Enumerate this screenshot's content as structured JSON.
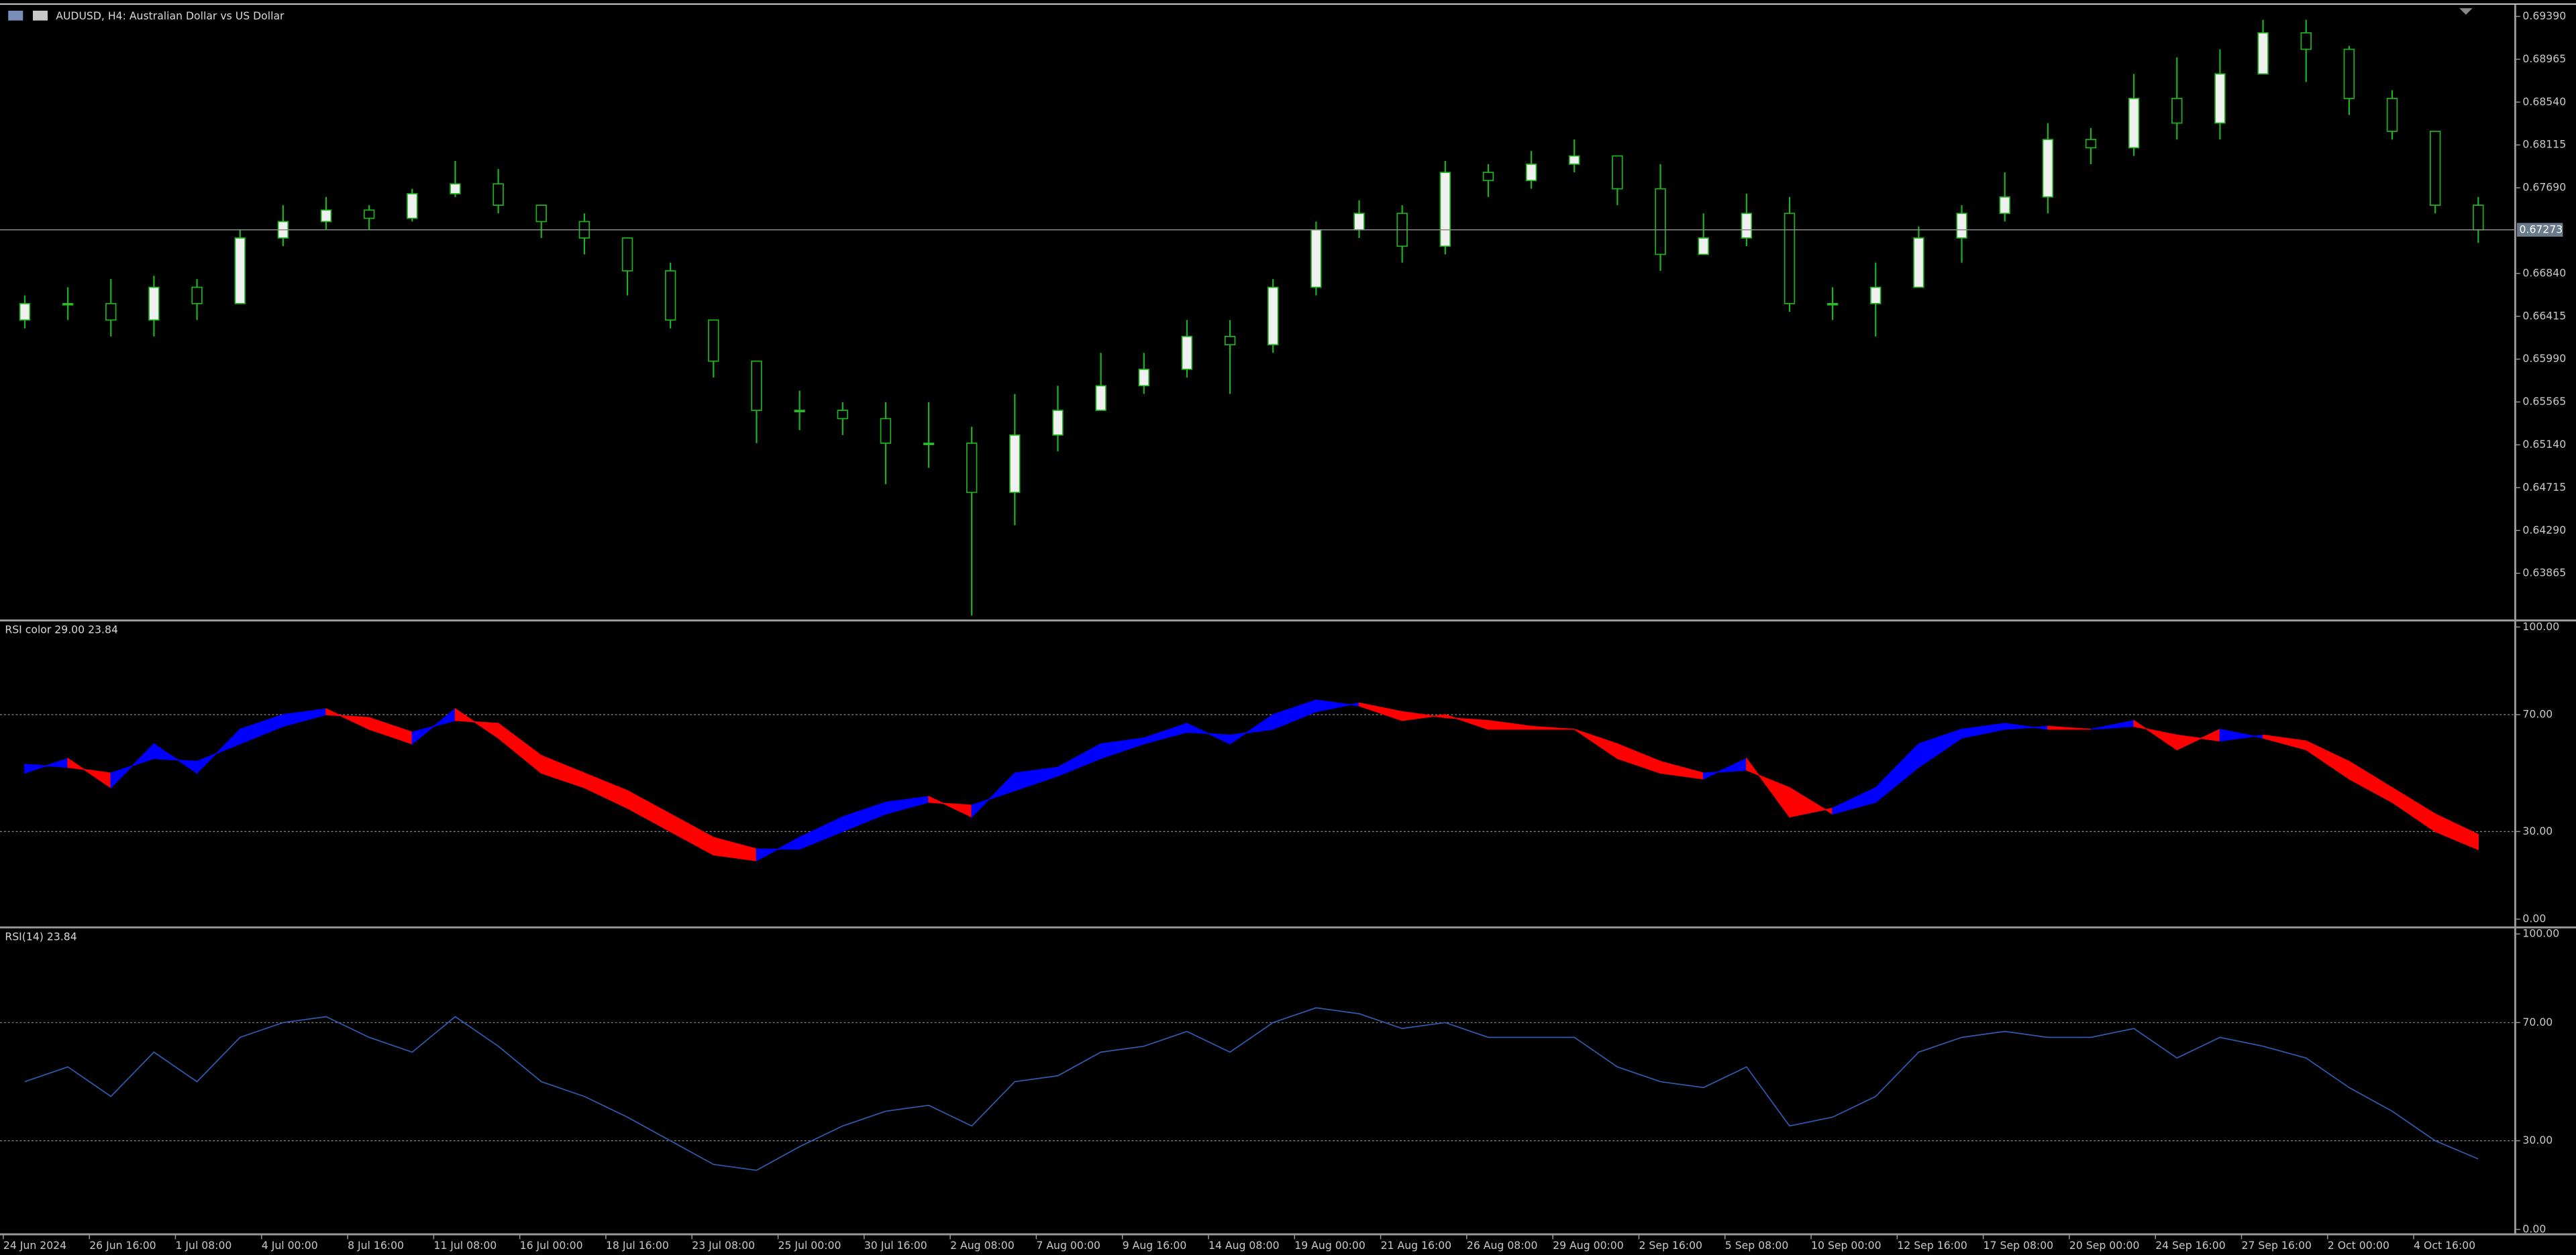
{
  "chart_data": [
    {
      "type": "candlestick",
      "title": "AUDUSD, H4:  Australian Dollar vs US Dollar",
      "categories": [
        "24 Jun 2024",
        null,
        "26 Jun 16:00",
        null,
        "1 Jul 08:00",
        null,
        "4 Jul 00:00",
        null,
        "8 Jul 16:00",
        null,
        "11 Jul 08:00",
        null,
        "16 Jul 00:00",
        null,
        "18 Jul 16:00",
        null,
        "23 Jul 08:00",
        null,
        "25 Jul 00:00",
        null,
        "30 Jul 16:00",
        null,
        "2 Aug 08:00",
        null,
        "7 Aug 00:00",
        null,
        "9 Aug 16:00",
        null,
        "14 Aug 08:00",
        null,
        "19 Aug 00:00",
        null,
        "21 Aug 16:00",
        null,
        "26 Aug 08:00",
        null,
        "29 Aug 00:00",
        null,
        "2 Sep 16:00",
        null,
        "5 Sep 08:00",
        null,
        "10 Sep 00:00",
        null,
        "12 Sep 16:00",
        null,
        "17 Sep 08:00",
        null,
        "20 Sep 00:00",
        null,
        "24 Sep 16:00",
        null,
        "27 Sep 16:00",
        null,
        "2 Oct 00:00",
        null,
        "4 Oct 16:00",
        null
      ],
      "open": [
        0.66378,
        0.66541,
        0.66541,
        0.66378,
        0.66703,
        0.66541,
        0.67192,
        0.67355,
        0.67469,
        0.67387,
        0.67631,
        0.67729,
        0.67517,
        0.67355,
        0.67192,
        0.66866,
        0.66378,
        0.6597,
        0.65482,
        0.65482,
        0.654,
        0.65156,
        0.65156,
        0.64668,
        0.65237,
        0.65482,
        0.65726,
        0.65889,
        0.66215,
        0.66133,
        0.66703,
        0.67273,
        0.67436,
        0.6711,
        0.67843,
        0.67762,
        0.67924,
        0.68006,
        0.6768,
        0.67029,
        0.67192,
        0.67436,
        0.66541,
        0.66541,
        0.66703,
        0.67192,
        0.67436,
        0.67599,
        0.68169,
        0.68087,
        0.68576,
        0.68332,
        0.6882,
        0.69227,
        0.69064,
        0.68576,
        0.6825,
        0.67517
      ],
      "high": [
        0.66622,
        0.66703,
        0.66785,
        0.66817,
        0.66785,
        0.67273,
        0.67517,
        0.67599,
        0.67517,
        0.6768,
        0.67957,
        0.67876,
        0.67517,
        0.67436,
        0.67192,
        0.66947,
        0.66378,
        0.6597,
        0.65677,
        0.65563,
        0.65563,
        0.65563,
        0.65319,
        0.65645,
        0.65726,
        0.66052,
        0.66052,
        0.66378,
        0.66378,
        0.66785,
        0.67355,
        0.67566,
        0.67517,
        0.67957,
        0.67924,
        0.68055,
        0.68169,
        0.68006,
        0.67924,
        0.67436,
        0.67631,
        0.67599,
        0.66703,
        0.66947,
        0.67306,
        0.67517,
        0.67843,
        0.68332,
        0.68283,
        0.6882,
        0.68983,
        0.69064,
        0.69357,
        0.69357,
        0.69097,
        0.68657,
        0.6825,
        0.67599
      ],
      "low": [
        0.66296,
        0.66378,
        0.66215,
        0.66215,
        0.66378,
        0.66541,
        0.6711,
        0.67273,
        0.67273,
        0.67355,
        0.67599,
        0.67436,
        0.67192,
        0.67029,
        0.66622,
        0.66296,
        0.65808,
        0.65156,
        0.65286,
        0.65237,
        0.64749,
        0.64912,
        0.63446,
        0.64342,
        0.65075,
        0.65482,
        0.65645,
        0.65808,
        0.65645,
        0.66052,
        0.66622,
        0.67192,
        0.66947,
        0.67029,
        0.67599,
        0.6768,
        0.67843,
        0.67517,
        0.66866,
        0.67029,
        0.6711,
        0.66459,
        0.66378,
        0.66215,
        0.66703,
        0.66947,
        0.67355,
        0.67436,
        0.67924,
        0.68006,
        0.68169,
        0.68169,
        0.6882,
        0.68739,
        0.68413,
        0.68169,
        0.67436,
        0.67143
      ],
      "close": [
        0.66541,
        0.66541,
        0.66378,
        0.66703,
        0.66541,
        0.67192,
        0.67355,
        0.67469,
        0.67387,
        0.67631,
        0.67729,
        0.67517,
        0.67355,
        0.67192,
        0.66866,
        0.66378,
        0.6597,
        0.65482,
        0.65482,
        0.654,
        0.65156,
        0.65156,
        0.64668,
        0.65237,
        0.65482,
        0.65726,
        0.65889,
        0.66215,
        0.66133,
        0.66703,
        0.67273,
        0.67436,
        0.6711,
        0.67843,
        0.67762,
        0.67924,
        0.68006,
        0.6768,
        0.67029,
        0.67192,
        0.67436,
        0.66541,
        0.66541,
        0.66703,
        0.67192,
        0.67436,
        0.67599,
        0.68169,
        0.68087,
        0.68576,
        0.68332,
        0.6882,
        0.69227,
        0.69064,
        0.68576,
        0.6825,
        0.67517,
        0.67273
      ],
      "color": "#1db31d",
      "up_color": "#f0f0f0",
      "down_color": "#000000",
      "current_price": 0.67273,
      "ylim": [
        0.63414,
        0.69504
      ],
      "yticks": [
        {
          "value": 0.6939,
          "label": "0.69390"
        },
        0.68965,
        {
          "value": 0.6854,
          "label": "0.68540"
        },
        0.68115,
        {
          "value": 0.6769,
          "label": "0.67690"
        },
        {
          "value": 0.6684,
          "label": "0.66840"
        },
        0.66415,
        {
          "value": 0.6599,
          "label": "0.65990"
        },
        0.65565,
        {
          "value": 0.6514,
          "label": "0.65140"
        },
        0.64715,
        {
          "value": 0.6429,
          "label": "0.64290"
        },
        0.63865
      ]
    },
    {
      "type": "rsi_band",
      "title": "RSI color 29.00 23.84",
      "rsi": [
        50,
        55,
        45,
        60,
        50,
        65,
        70,
        72,
        65,
        60,
        72,
        62,
        50,
        45,
        38,
        30,
        22,
        20,
        28,
        35,
        40,
        42,
        35,
        50,
        52,
        60,
        62,
        67,
        60,
        70,
        75,
        73,
        68,
        70,
        65,
        65,
        65,
        55,
        50,
        48,
        55,
        35,
        38,
        45,
        60,
        65,
        67,
        65,
        65,
        68,
        58,
        65,
        62,
        58,
        48,
        40,
        30,
        23.84
      ],
      "signal": [
        53,
        52,
        50,
        55,
        54,
        60,
        66,
        70,
        69,
        64,
        68,
        67,
        56,
        50,
        44,
        36,
        28,
        24,
        24,
        30,
        36,
        40,
        39,
        44,
        49,
        55,
        60,
        64,
        63,
        65,
        71,
        74,
        71,
        69,
        68,
        66,
        65,
        60,
        54,
        50,
        51,
        45,
        36,
        40,
        52,
        62,
        65,
        66,
        65,
        66,
        63,
        61,
        63,
        61,
        54,
        45,
        36,
        29
      ],
      "up_color": "#0000ff",
      "down_color": "#ff0000",
      "levels": [
        30,
        70
      ],
      "ylim": [
        0,
        100
      ],
      "yticks": [
        {
          "value": 100,
          "label": "100.00"
        },
        {
          "value": 70,
          "label": "70.00"
        },
        {
          "value": 30,
          "label": "30.00"
        },
        {
          "value": 0,
          "label": "0.00"
        }
      ]
    },
    {
      "type": "line",
      "title": "RSI(14) 23.84",
      "values": [
        50,
        55,
        45,
        60,
        50,
        65,
        70,
        72,
        65,
        60,
        72,
        62,
        50,
        45,
        38,
        30,
        22,
        20,
        28,
        35,
        40,
        42,
        35,
        50,
        52,
        60,
        62,
        67,
        60,
        70,
        75,
        73,
        68,
        70,
        65,
        65,
        65,
        55,
        50,
        48,
        55,
        35,
        38,
        45,
        60,
        65,
        67,
        65,
        65,
        68,
        58,
        65,
        62,
        58,
        48,
        40,
        30,
        23.84
      ],
      "color": "#2f5cb0",
      "levels": [
        30,
        70
      ],
      "ylim": [
        0,
        100
      ],
      "yticks": [
        {
          "value": 100,
          "label": "100.00"
        },
        {
          "value": 70,
          "label": "70.00"
        },
        {
          "value": 30,
          "label": "30.00"
        },
        {
          "value": 0,
          "label": "0.00"
        }
      ]
    }
  ]
}
